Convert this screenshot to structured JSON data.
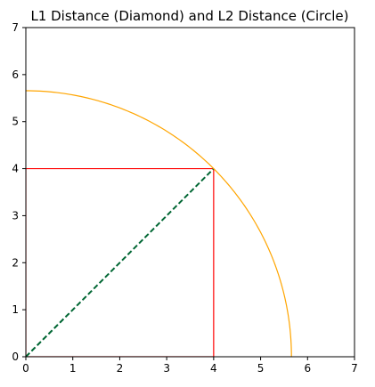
{
  "chart_data": {
    "type": "line",
    "title": "L1 Distance (Diamond) and L2 Distance (Circle)",
    "xlabel": "",
    "ylabel": "",
    "xlim": [
      0,
      7
    ],
    "ylim": [
      0,
      7
    ],
    "xticks": [
      0,
      1,
      2,
      3,
      4,
      5,
      6,
      7
    ],
    "yticks": [
      0,
      1,
      2,
      3,
      4,
      5,
      6,
      7
    ],
    "grid": false,
    "point": [
      4,
      4
    ],
    "series": [
      {
        "kind": "l1-path",
        "color": "#ff0000",
        "style": "solid",
        "points": [
          [
            0,
            0
          ],
          [
            4,
            0
          ],
          [
            4,
            4
          ],
          [
            0,
            4
          ],
          [
            0,
            0
          ]
        ]
      },
      {
        "kind": "l2-segment",
        "color": "#006633",
        "style": "dashed",
        "points": [
          [
            0,
            0
          ],
          [
            4,
            4
          ]
        ]
      },
      {
        "kind": "l2-circle-arc",
        "color": "#ffa500",
        "style": "solid",
        "radius": 5.657
      }
    ]
  }
}
